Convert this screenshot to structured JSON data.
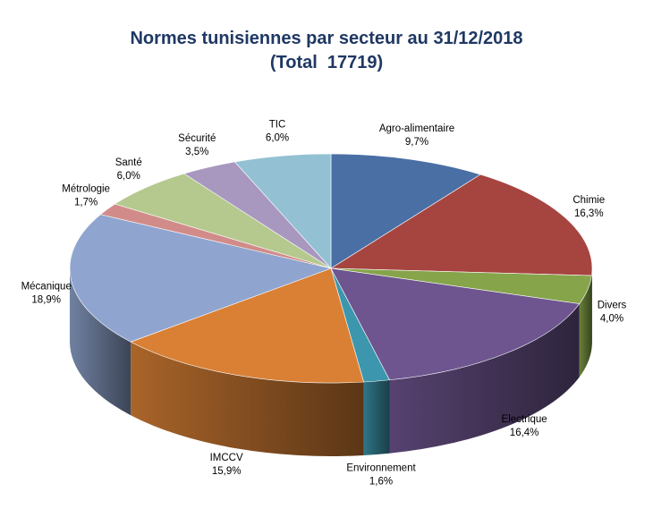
{
  "chart_data": {
    "type": "pie",
    "title": "Normes tunisiennes par secteur au 31/12/2018",
    "subtitle": "(Total  17719)",
    "slices": [
      {
        "name": "Agro-alimentaire",
        "value": 9.7,
        "label": "9,7%",
        "color": "#4a6fa5"
      },
      {
        "name": "Chimie",
        "value": 16.3,
        "label": "16,3%",
        "color": "#a64440"
      },
      {
        "name": "Divers",
        "value": 4.0,
        "label": "4,0%",
        "color": "#86a44a"
      },
      {
        "name": "Electrique",
        "value": 16.4,
        "label": "16,4%",
        "color": "#6e558f"
      },
      {
        "name": "Environnement",
        "value": 1.6,
        "label": "1,6%",
        "color": "#3c96ad"
      },
      {
        "name": "IMCCV",
        "value": 15.9,
        "label": "15,9%",
        "color": "#d98035"
      },
      {
        "name": "Mécanique",
        "value": 18.9,
        "label": "18,9%",
        "color": "#8fa5cf"
      },
      {
        "name": "Métrologie",
        "value": 1.7,
        "label": "1,7%",
        "color": "#d18c8a"
      },
      {
        "name": "Santé",
        "value": 6.0,
        "label": "6,0%",
        "color": "#b5c98f"
      },
      {
        "name": "Sécurité",
        "value": 3.5,
        "label": "3,5%",
        "color": "#a898bf"
      },
      {
        "name": "TIC",
        "value": 6.0,
        "label": "6,0%",
        "color": "#93c1d3"
      }
    ],
    "legend": "none",
    "style": "3d-pie"
  }
}
